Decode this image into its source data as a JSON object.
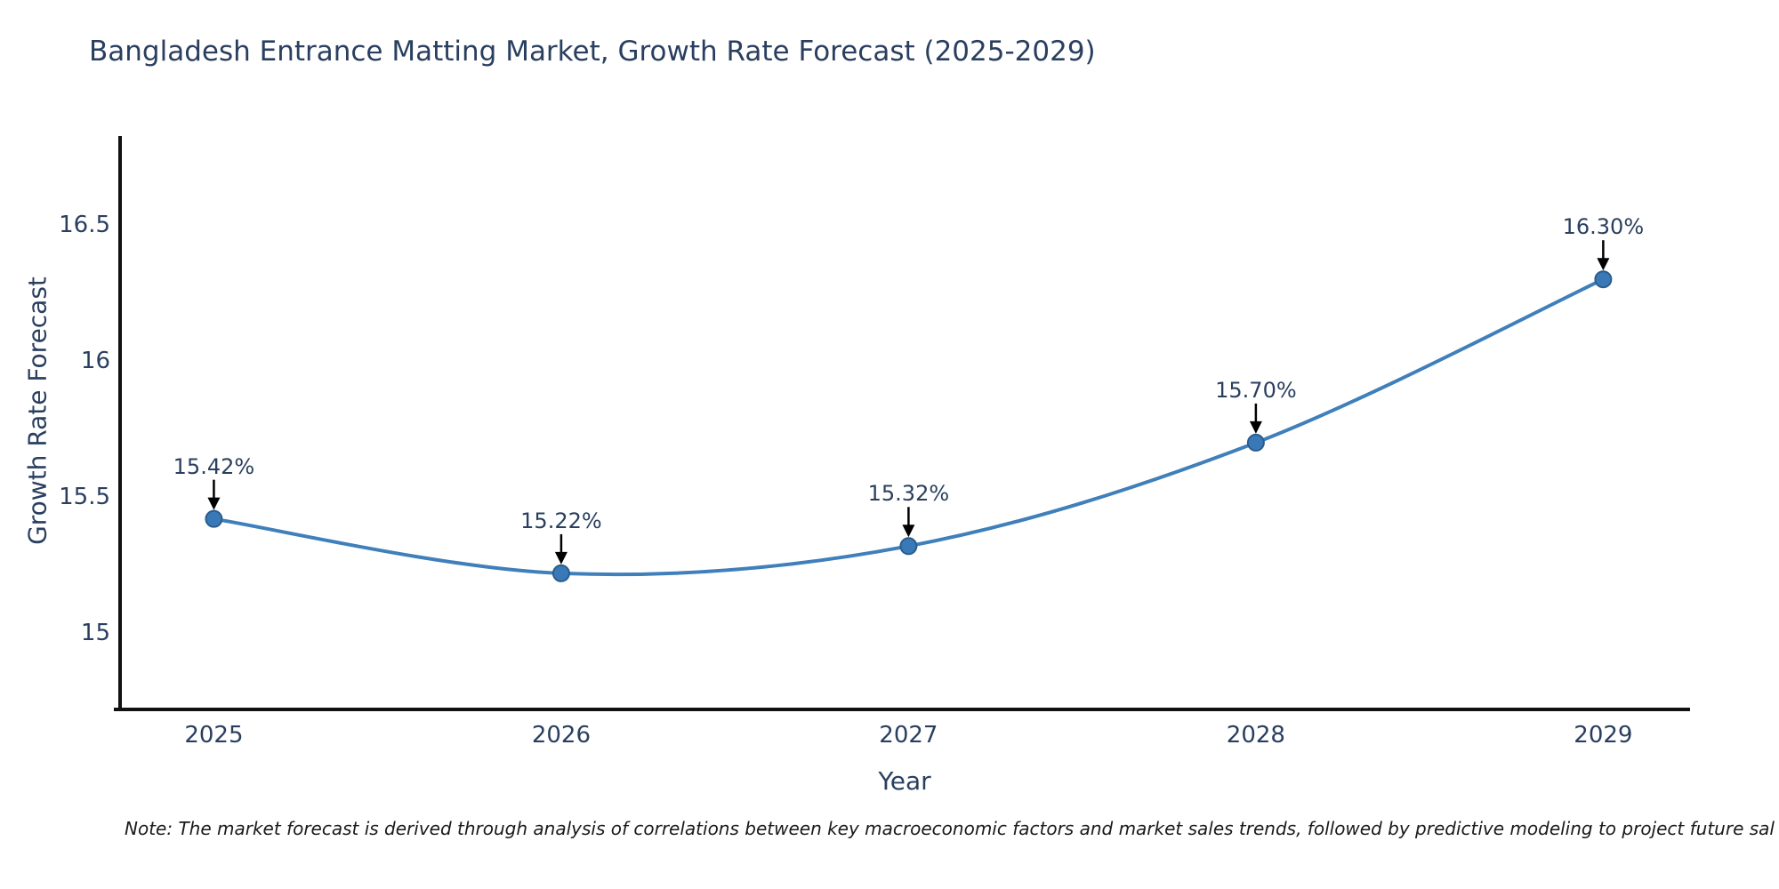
{
  "chart_data": {
    "type": "line",
    "title": "Bangladesh Entrance Matting Market, Growth Rate Forecast (2025-2029)",
    "xlabel": "Year",
    "ylabel": "Growth Rate Forecast",
    "x": [
      2025,
      2026,
      2027,
      2028,
      2029
    ],
    "y": [
      15.42,
      15.22,
      15.32,
      15.7,
      16.3
    ],
    "point_labels": [
      "15.42%",
      "15.22%",
      "15.32%",
      "15.70%",
      "16.30%"
    ],
    "x_tick_labels": [
      "2025",
      "2026",
      "2027",
      "2028",
      "2029"
    ],
    "y_ticks": [
      15,
      15.5,
      16,
      16.5
    ],
    "y_tick_labels": [
      "15",
      "15.5",
      "16",
      "16.5"
    ],
    "xlim": [
      2024.73,
      2029.25
    ],
    "ylim": [
      14.72,
      16.82
    ],
    "grid": false,
    "legend": null,
    "line_shape": "spline",
    "colors": {
      "line": "#3f7fba",
      "marker_fill": "#3a79b8",
      "marker_edge": "#2a5d8c",
      "axis": "#111111",
      "text": "#2a3f5f",
      "annotation_text": "#2a3f5f",
      "arrow": "#000000",
      "note_text": "#1a1a1a",
      "background": "#ffffff"
    }
  },
  "note": "Note: The market forecast is derived through analysis of correlations between key macroeconomic factors and market sales trends, followed by predictive modeling to project future sal"
}
